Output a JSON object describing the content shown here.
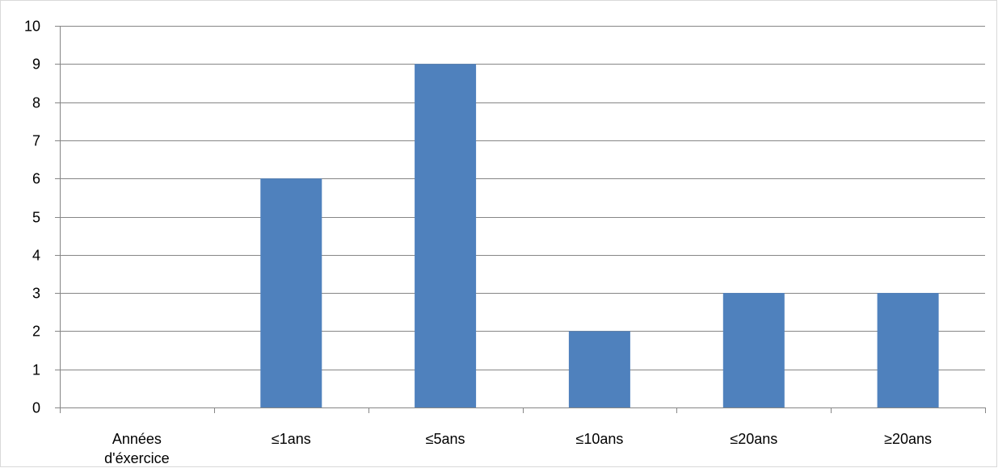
{
  "chart_data": {
    "type": "bar",
    "categories": [
      "Années d'éxercice",
      "≤1ans",
      "≤5ans",
      "≤10ans",
      "≤20ans",
      "≥20ans"
    ],
    "category_lines": [
      [
        "Années",
        "d'éxercice"
      ],
      [
        "≤1ans"
      ],
      [
        "≤5ans"
      ],
      [
        "≤10ans"
      ],
      [
        "≤20ans"
      ],
      [
        "≥20ans"
      ]
    ],
    "values": [
      null,
      6,
      9,
      2,
      3,
      3
    ],
    "title": "",
    "xlabel": "",
    "ylabel": "",
    "ylim": [
      0,
      10
    ],
    "yticks": [
      0,
      1,
      2,
      3,
      4,
      5,
      6,
      7,
      8,
      9,
      10
    ],
    "grid": true,
    "legend": "none",
    "bar_color": "#4f81bd",
    "grid_color": "#868686"
  }
}
